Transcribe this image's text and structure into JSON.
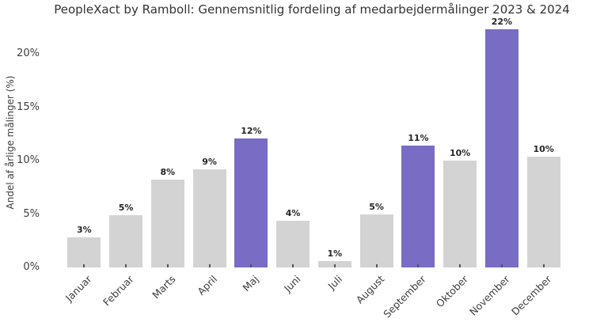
{
  "chart_data": {
    "type": "bar",
    "title": "PeopleXact by Ramboll: Gennemsnitlig fordeling af medarbejdermålinger 2023 & 2024",
    "ylabel": "Andel af årlige målinger (%)",
    "xlabel": "",
    "categories": [
      "Januar",
      "Februar",
      "Marts",
      "April",
      "Maj",
      "Juni",
      "Juli",
      "August",
      "September",
      "Oktober",
      "November",
      "December"
    ],
    "values": [
      2.8,
      4.9,
      8.2,
      9.2,
      12.1,
      4.4,
      0.6,
      5.0,
      11.4,
      10.0,
      22.3,
      10.4
    ],
    "bar_labels": [
      "3%",
      "5%",
      "8%",
      "9%",
      "12%",
      "4%",
      "1%",
      "5%",
      "11%",
      "10%",
      "22%",
      "10%"
    ],
    "highlight_indices": [
      4,
      8,
      10
    ],
    "highlighted_months": [
      "Maj",
      "September",
      "November"
    ],
    "ytick_values": [
      0,
      5,
      10,
      15,
      20
    ],
    "ytick_labels": [
      "0%",
      "5%",
      "10%",
      "15%",
      "20%"
    ],
    "ylim": [
      0,
      23
    ],
    "grid": false,
    "legend_position": "none",
    "colors": {
      "bar_default": "#d3d3d3",
      "bar_highlight": "#786cc4",
      "title_text": "#333333",
      "axis_text": "#3d3d3d",
      "bar_label_text": "#262626",
      "background": "#ffffff"
    }
  }
}
